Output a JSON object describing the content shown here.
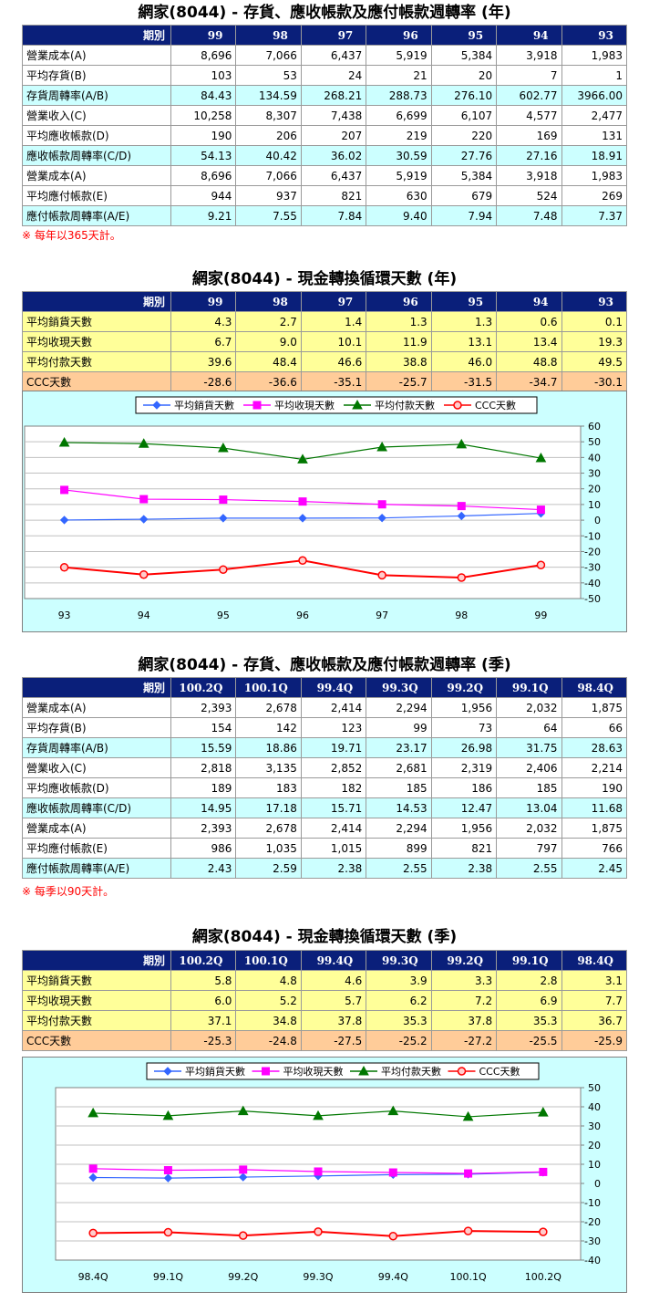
{
  "sections": {
    "annual_turnover": {
      "title": "網家(8044) -  存貨、應收帳款及應付帳款週轉率 (年)",
      "header_label": "期別",
      "periods": [
        "99",
        "98",
        "97",
        "96",
        "95",
        "94",
        "93"
      ],
      "rows": [
        {
          "label": "營業成本(A)",
          "values": [
            "8,696",
            "7,066",
            "6,437",
            "5,919",
            "5,384",
            "3,918",
            "1,983"
          ],
          "style": "white"
        },
        {
          "label": "平均存貨(B)",
          "values": [
            "103",
            "53",
            "24",
            "21",
            "20",
            "7",
            "1"
          ],
          "style": "white"
        },
        {
          "label": "存貨周轉率(A/B)",
          "values": [
            "84.43",
            "134.59",
            "268.21",
            "288.73",
            "276.10",
            "602.77",
            "3966.00"
          ],
          "style": "cyan"
        },
        {
          "label": "營業收入(C)",
          "values": [
            "10,258",
            "8,307",
            "7,438",
            "6,699",
            "6,107",
            "4,577",
            "2,477"
          ],
          "style": "white"
        },
        {
          "label": "平均應收帳款(D)",
          "values": [
            "190",
            "206",
            "207",
            "219",
            "220",
            "169",
            "131"
          ],
          "style": "white"
        },
        {
          "label": "應收帳款周轉率(C/D)",
          "values": [
            "54.13",
            "40.42",
            "36.02",
            "30.59",
            "27.76",
            "27.16",
            "18.91"
          ],
          "style": "cyan"
        },
        {
          "label": "營業成本(A)",
          "values": [
            "8,696",
            "7,066",
            "6,437",
            "5,919",
            "5,384",
            "3,918",
            "1,983"
          ],
          "style": "white"
        },
        {
          "label": "平均應付帳款(E)",
          "values": [
            "944",
            "937",
            "821",
            "630",
            "679",
            "524",
            "269"
          ],
          "style": "white"
        },
        {
          "label": "應付帳款周轉率(A/E)",
          "values": [
            "9.21",
            "7.55",
            "7.84",
            "9.40",
            "7.94",
            "7.48",
            "7.37"
          ],
          "style": "cyan"
        }
      ],
      "note": "※ 每年以365天計。"
    },
    "annual_ccc": {
      "title": "網家(8044) -  現金轉換循環天數 (年)",
      "header_label": "期別",
      "periods": [
        "99",
        "98",
        "97",
        "96",
        "95",
        "94",
        "93"
      ],
      "rows": [
        {
          "label": "平均銷貨天數",
          "values": [
            "4.3",
            "2.7",
            "1.4",
            "1.3",
            "1.3",
            "0.6",
            "0.1"
          ],
          "style": "yellow"
        },
        {
          "label": "平均收現天數",
          "values": [
            "6.7",
            "9.0",
            "10.1",
            "11.9",
            "13.1",
            "13.4",
            "19.3"
          ],
          "style": "yellow"
        },
        {
          "label": "平均付款天數",
          "values": [
            "39.6",
            "48.4",
            "46.6",
            "38.8",
            "46.0",
            "48.8",
            "49.5"
          ],
          "style": "yellow"
        },
        {
          "label": "CCC天數",
          "values": [
            "-28.6",
            "-36.6",
            "-35.1",
            "-25.7",
            "-31.5",
            "-34.7",
            "-30.1"
          ],
          "style": "orange"
        }
      ]
    },
    "quarterly_turnover": {
      "title": "網家(8044) -  存貨、應收帳款及應付帳款週轉率 (季)",
      "header_label": "期別",
      "periods": [
        "100.2Q",
        "100.1Q",
        "99.4Q",
        "99.3Q",
        "99.2Q",
        "99.1Q",
        "98.4Q"
      ],
      "rows": [
        {
          "label": "營業成本(A)",
          "values": [
            "2,393",
            "2,678",
            "2,414",
            "2,294",
            "1,956",
            "2,032",
            "1,875"
          ],
          "style": "white"
        },
        {
          "label": "平均存貨(B)",
          "values": [
            "154",
            "142",
            "123",
            "99",
            "73",
            "64",
            "66"
          ],
          "style": "white"
        },
        {
          "label": "存貨周轉率(A/B)",
          "values": [
            "15.59",
            "18.86",
            "19.71",
            "23.17",
            "26.98",
            "31.75",
            "28.63"
          ],
          "style": "cyan"
        },
        {
          "label": "營業收入(C)",
          "values": [
            "2,818",
            "3,135",
            "2,852",
            "2,681",
            "2,319",
            "2,406",
            "2,214"
          ],
          "style": "white"
        },
        {
          "label": "平均應收帳款(D)",
          "values": [
            "189",
            "183",
            "182",
            "185",
            "186",
            "185",
            "190"
          ],
          "style": "white"
        },
        {
          "label": "應收帳款周轉率(C/D)",
          "values": [
            "14.95",
            "17.18",
            "15.71",
            "14.53",
            "12.47",
            "13.04",
            "11.68"
          ],
          "style": "cyan"
        },
        {
          "label": "營業成本(A)",
          "values": [
            "2,393",
            "2,678",
            "2,414",
            "2,294",
            "1,956",
            "2,032",
            "1,875"
          ],
          "style": "white"
        },
        {
          "label": "平均應付帳款(E)",
          "values": [
            "986",
            "1,035",
            "1,015",
            "899",
            "821",
            "797",
            "766"
          ],
          "style": "white"
        },
        {
          "label": "應付帳款周轉率(A/E)",
          "values": [
            "2.43",
            "2.59",
            "2.38",
            "2.55",
            "2.38",
            "2.55",
            "2.45"
          ],
          "style": "cyan"
        }
      ],
      "note": "※ 每季以90天計。"
    },
    "quarterly_ccc": {
      "title": "網家(8044) -  現金轉換循環天數 (季)",
      "header_label": "期別",
      "periods": [
        "100.2Q",
        "100.1Q",
        "99.4Q",
        "99.3Q",
        "99.2Q",
        "99.1Q",
        "98.4Q"
      ],
      "rows": [
        {
          "label": "平均銷貨天數",
          "values": [
            "5.8",
            "4.8",
            "4.6",
            "3.9",
            "3.3",
            "2.8",
            "3.1"
          ],
          "style": "yellow"
        },
        {
          "label": "平均收現天數",
          "values": [
            "6.0",
            "5.2",
            "5.7",
            "6.2",
            "7.2",
            "6.9",
            "7.7"
          ],
          "style": "yellow"
        },
        {
          "label": "平均付款天數",
          "values": [
            "37.1",
            "34.8",
            "37.8",
            "35.3",
            "37.8",
            "35.3",
            "36.7"
          ],
          "style": "yellow"
        },
        {
          "label": "CCC天數",
          "values": [
            "-25.3",
            "-24.8",
            "-27.5",
            "-25.2",
            "-27.2",
            "-25.5",
            "-25.9"
          ],
          "style": "orange"
        }
      ]
    }
  },
  "chart_data": [
    {
      "type": "line",
      "categories": [
        "93",
        "94",
        "95",
        "96",
        "97",
        "98",
        "99"
      ],
      "ylim": [
        -50,
        60
      ],
      "yticks": [
        60,
        50,
        40,
        30,
        20,
        10,
        0,
        -10,
        -20,
        -30,
        -40,
        -50
      ],
      "grid": true,
      "legend": "top",
      "series": [
        {
          "name": "平均銷貨天數",
          "values": [
            0.1,
            0.6,
            1.3,
            1.3,
            1.4,
            2.7,
            4.3
          ],
          "color": "#3366ff",
          "marker": "diamond"
        },
        {
          "name": "平均收現天數",
          "values": [
            19.3,
            13.4,
            13.1,
            11.9,
            10.1,
            9.0,
            6.7
          ],
          "color": "#ff00ff",
          "marker": "square"
        },
        {
          "name": "平均付款天數",
          "values": [
            49.5,
            48.8,
            46.0,
            38.8,
            46.6,
            48.4,
            39.6
          ],
          "color": "#007700",
          "marker": "triangle"
        },
        {
          "name": "CCC天數",
          "values": [
            -30.1,
            -34.7,
            -31.5,
            -25.7,
            -35.1,
            -36.6,
            -28.6
          ],
          "color": "#ff0000",
          "marker": "circle"
        }
      ]
    },
    {
      "type": "line",
      "categories": [
        "98.4Q",
        "99.1Q",
        "99.2Q",
        "99.3Q",
        "99.4Q",
        "100.1Q",
        "100.2Q"
      ],
      "ylim": [
        -40,
        50
      ],
      "yticks": [
        50,
        40,
        30,
        20,
        10,
        0,
        -10,
        -20,
        -30,
        -40
      ],
      "grid": true,
      "legend": "top",
      "series": [
        {
          "name": "平均銷貨天數",
          "values": [
            3.1,
            2.8,
            3.3,
            3.9,
            4.6,
            4.8,
            5.8
          ],
          "color": "#3366ff",
          "marker": "diamond"
        },
        {
          "name": "平均收現天數",
          "values": [
            7.7,
            6.9,
            7.2,
            6.2,
            5.7,
            5.2,
            6.0
          ],
          "color": "#ff00ff",
          "marker": "square"
        },
        {
          "name": "平均付款天數",
          "values": [
            36.7,
            35.3,
            37.8,
            35.3,
            37.8,
            34.8,
            37.1
          ],
          "color": "#007700",
          "marker": "triangle"
        },
        {
          "name": "CCC天數",
          "values": [
            -25.9,
            -25.5,
            -27.2,
            -25.2,
            -27.5,
            -24.8,
            -25.3
          ],
          "color": "#ff0000",
          "marker": "circle"
        }
      ]
    }
  ]
}
